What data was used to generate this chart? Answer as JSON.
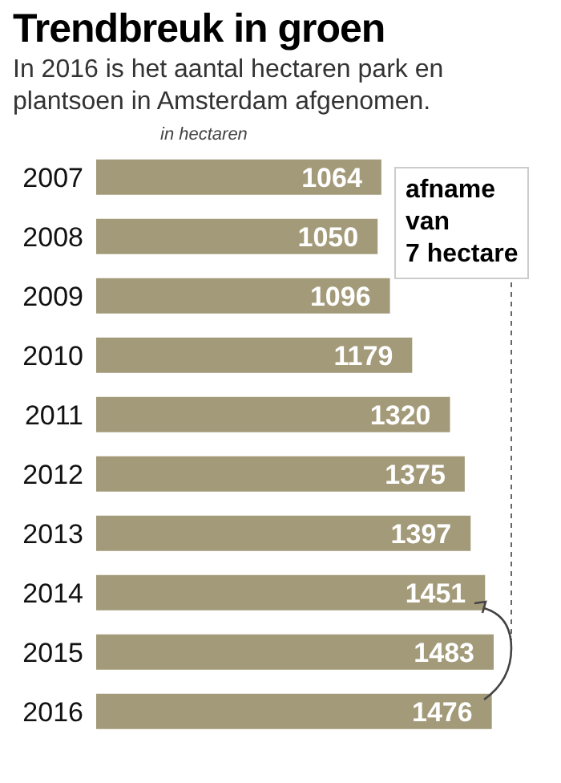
{
  "chart_data": {
    "type": "bar",
    "orientation": "horizontal",
    "title": "Trendbreuk in groen",
    "subtitle": "In 2016 is het aantal hectaren park en plantsoen in Amsterdam afgenomen.",
    "xlabel": "in hectaren",
    "categories": [
      "2007",
      "2008",
      "2009",
      "2010",
      "2011",
      "2012",
      "2013",
      "2014",
      "2015",
      "2016"
    ],
    "values": [
      1064,
      1050,
      1096,
      1179,
      1320,
      1375,
      1397,
      1451,
      1483,
      1476
    ],
    "color": "#a39a79",
    "data_labels": true,
    "tick_labels": "y",
    "grid": false,
    "annotations": [
      "afname\nvan\n7 hectare"
    ]
  }
}
